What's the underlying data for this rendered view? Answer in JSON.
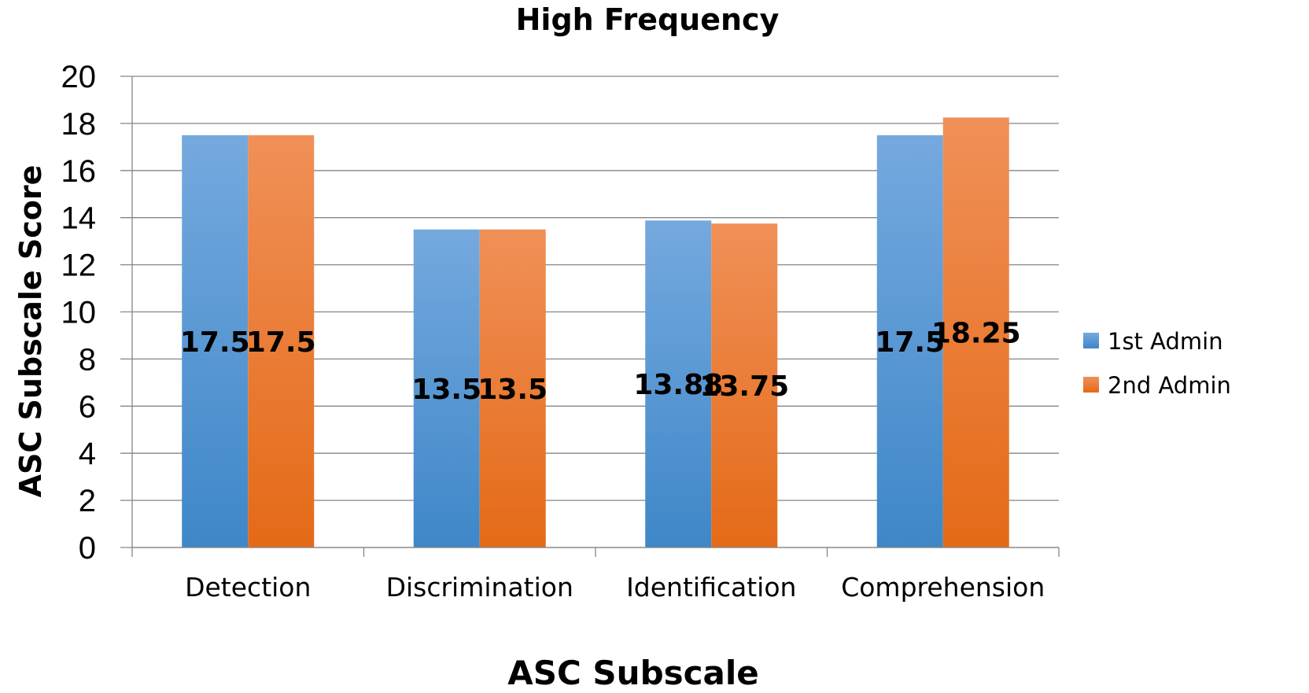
{
  "chart_data": {
    "type": "bar",
    "title": "High Frequency",
    "xlabel": "ASC Subscale",
    "ylabel": "ASC Subscale Score",
    "ylim": [
      0,
      20
    ],
    "yticks": [
      0,
      2,
      4,
      6,
      8,
      10,
      12,
      14,
      16,
      18,
      20
    ],
    "grid": true,
    "legend_position": "right",
    "categories": [
      "Detection",
      "Discrimination",
      "Identification",
      "Comprehension"
    ],
    "series": [
      {
        "name": "1st Admin",
        "values": [
          17.5,
          13.5,
          13.88,
          17.5
        ],
        "labels": [
          "17.5",
          "13.5",
          "13.88",
          "17.5"
        ],
        "color_top": "#75a9de",
        "color_bottom": "#3e87c8"
      },
      {
        "name": "2nd Admin",
        "values": [
          17.5,
          13.5,
          13.75,
          18.25
        ],
        "labels": [
          "17.5",
          "13.5",
          "13.75",
          "18.25"
        ],
        "color_top": "#f09058",
        "color_bottom": "#e46a17"
      }
    ]
  }
}
